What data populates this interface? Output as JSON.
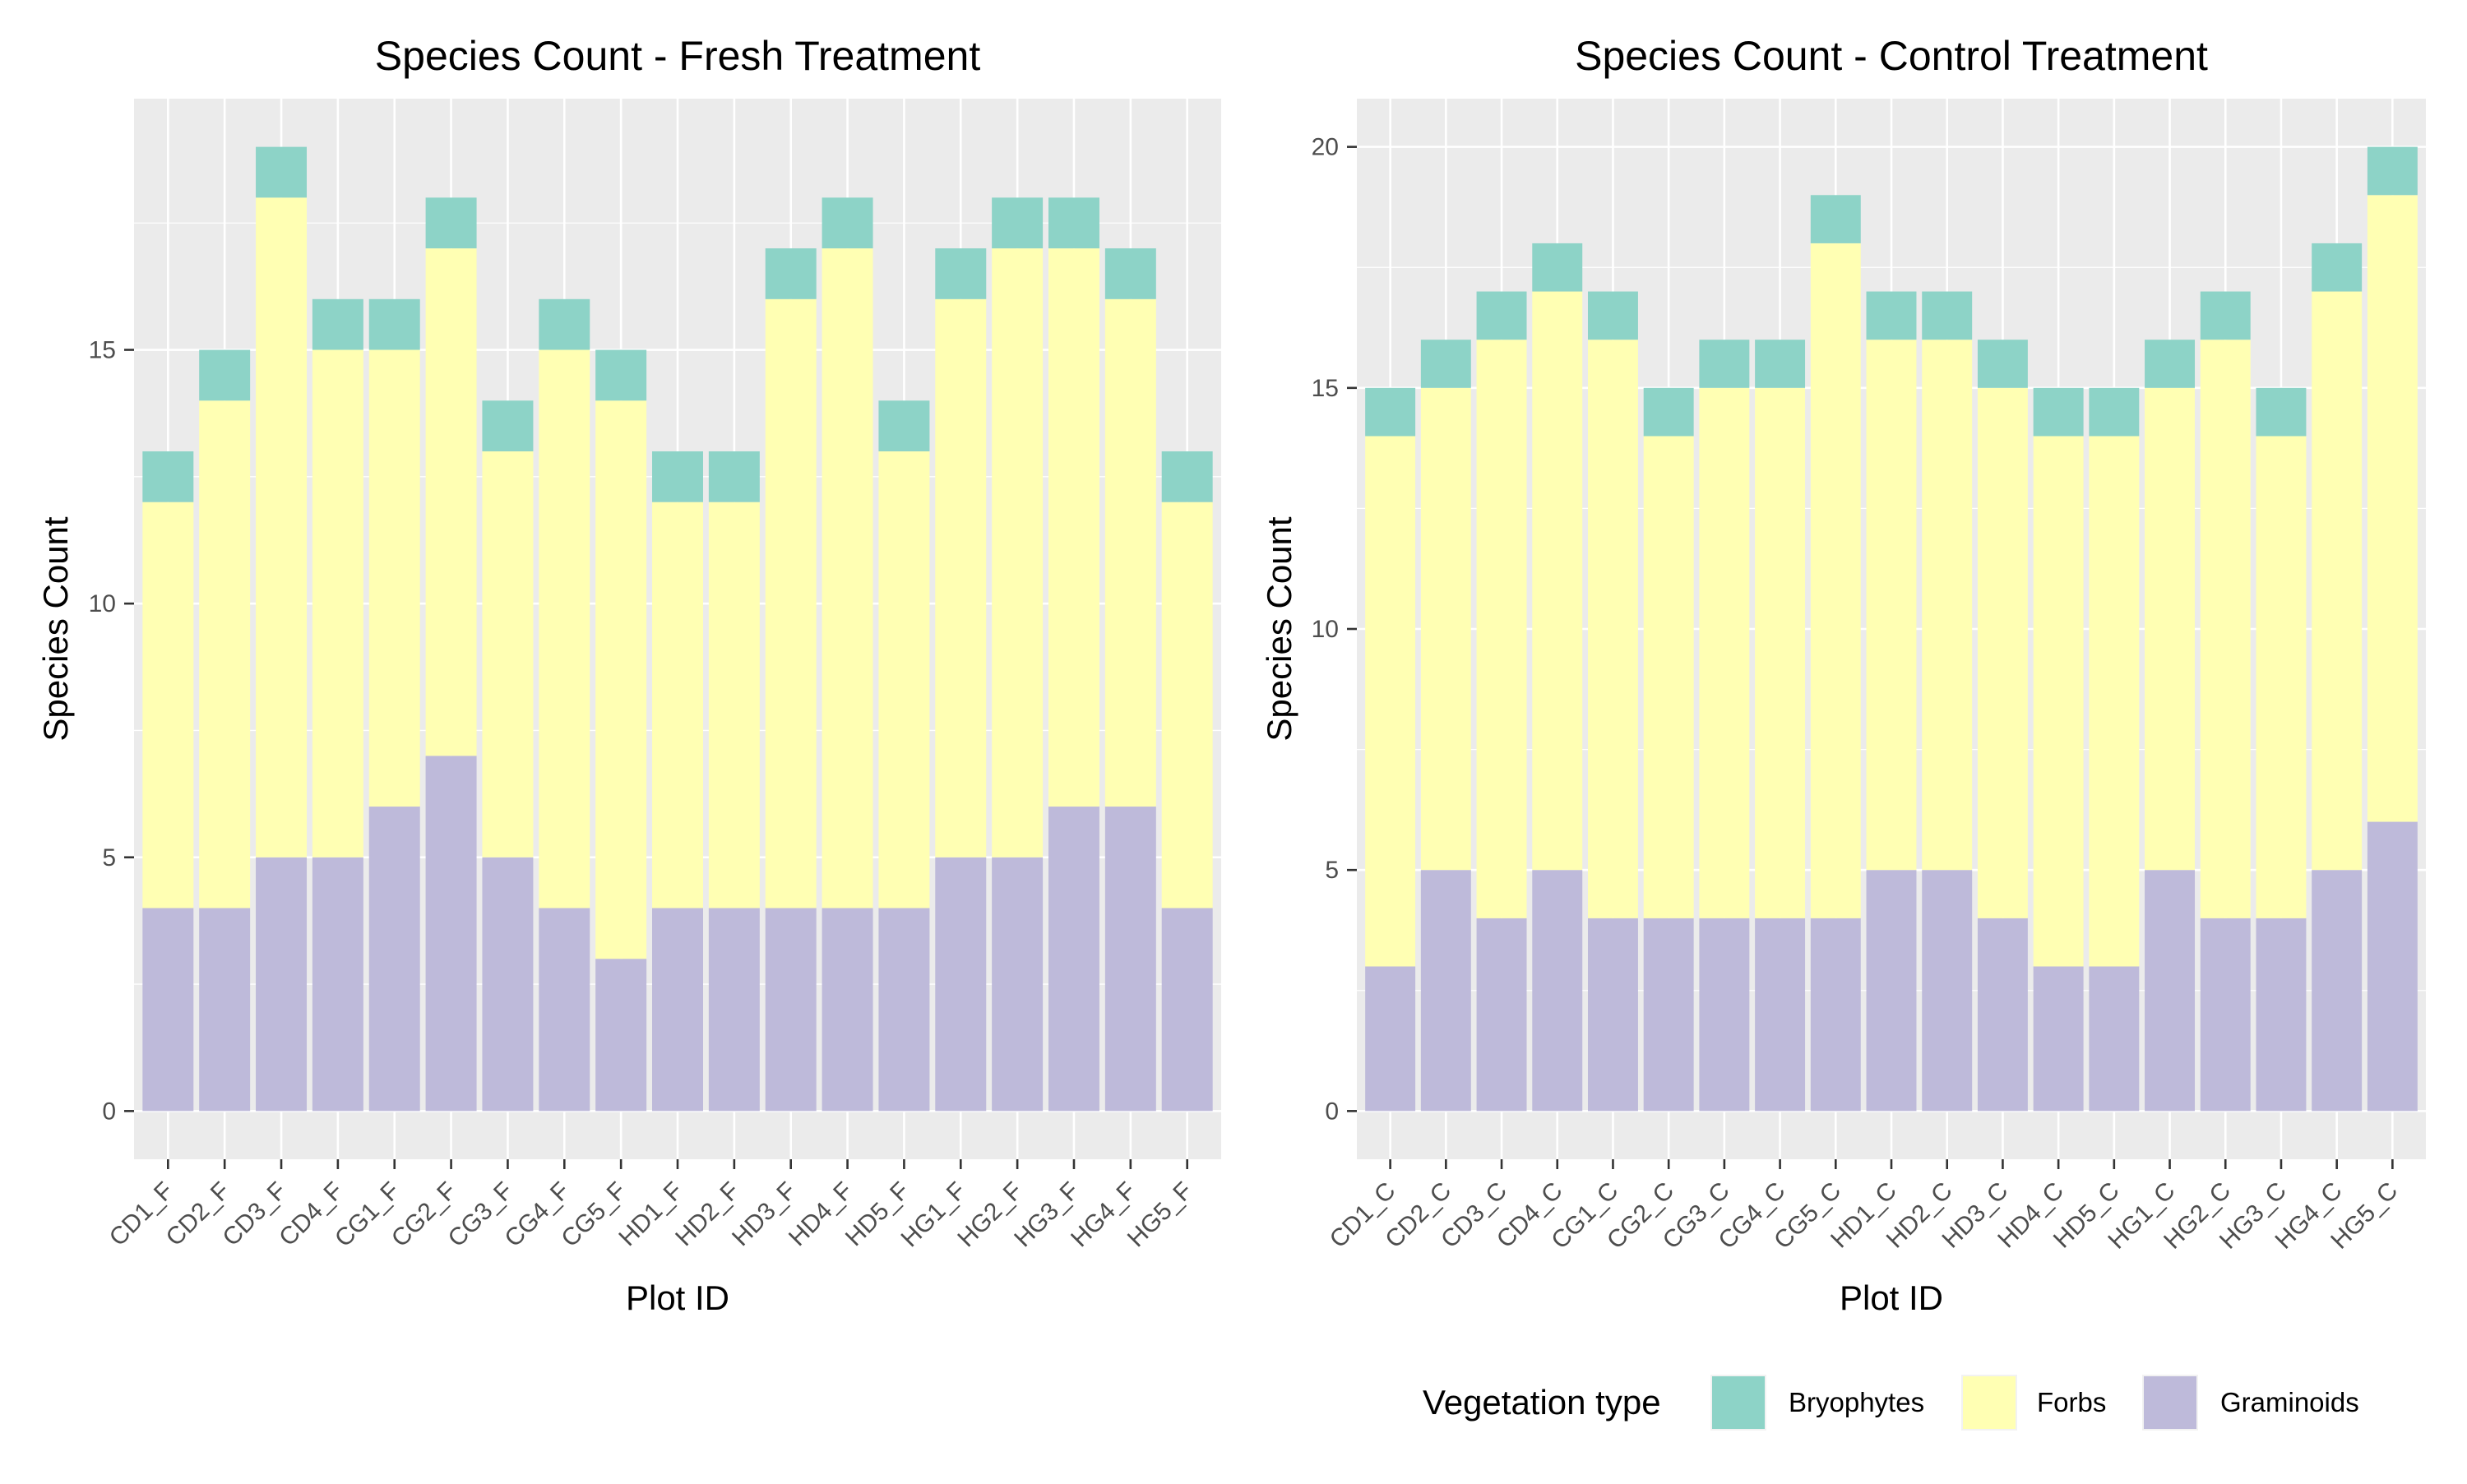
{
  "colors": {
    "Bryophytes": "#8DD3C7",
    "Forbs": "#FFFFB3",
    "Graminoids": "#BEBADA"
  },
  "legend": {
    "title": "Vegetation type",
    "entries": [
      "Bryophytes",
      "Forbs",
      "Graminoids"
    ],
    "position": "bottom-right"
  },
  "chart_data": [
    {
      "type": "bar",
      "stacked": true,
      "title": "Species Count - Fresh Treatment",
      "xlabel": "Plot ID",
      "ylabel": "Species Count",
      "ylim": [
        0,
        19
      ],
      "yticks": [
        0,
        5,
        10,
        15
      ],
      "grid": true,
      "categories": [
        "CD1_F",
        "CD2_F",
        "CD3_F",
        "CD4_F",
        "CG1_F",
        "CG2_F",
        "CG3_F",
        "CG4_F",
        "CG5_F",
        "HD1_F",
        "HD2_F",
        "HD3_F",
        "HD4_F",
        "HD5_F",
        "HG1_F",
        "HG2_F",
        "HG3_F",
        "HG4_F",
        "HG5_F"
      ],
      "series": [
        {
          "name": "Graminoids",
          "values": [
            4,
            4,
            5,
            5,
            6,
            7,
            5,
            4,
            3,
            4,
            4,
            4,
            4,
            4,
            5,
            5,
            6,
            6,
            4
          ]
        },
        {
          "name": "Forbs",
          "values": [
            8,
            10,
            13,
            10,
            9,
            10,
            8,
            11,
            11,
            8,
            8,
            12,
            13,
            9,
            11,
            12,
            11,
            10,
            8
          ]
        },
        {
          "name": "Bryophytes",
          "values": [
            1,
            1,
            1,
            1,
            1,
            1,
            1,
            1,
            1,
            1,
            1,
            1,
            1,
            1,
            1,
            1,
            1,
            1,
            1
          ]
        }
      ]
    },
    {
      "type": "bar",
      "stacked": true,
      "title": "Species Count - Control Treatment",
      "xlabel": "Plot ID",
      "ylabel": "Species Count",
      "ylim": [
        0,
        20
      ],
      "yticks": [
        0,
        5,
        10,
        15,
        20
      ],
      "grid": true,
      "categories": [
        "CD1_C",
        "CD2_C",
        "CD3_C",
        "CD4_C",
        "CG1_C",
        "CG2_C",
        "CG3_C",
        "CG4_C",
        "CG5_C",
        "HD1_C",
        "HD2_C",
        "HD3_C",
        "HD4_C",
        "HD5_C",
        "HG1_C",
        "HG2_C",
        "HG3_C",
        "HG4_C",
        "HG5_C"
      ],
      "series": [
        {
          "name": "Graminoids",
          "values": [
            3,
            5,
            4,
            5,
            4,
            4,
            4,
            4,
            4,
            5,
            5,
            4,
            3,
            3,
            5,
            4,
            4,
            5,
            6
          ]
        },
        {
          "name": "Forbs",
          "values": [
            11,
            10,
            12,
            12,
            12,
            10,
            11,
            11,
            14,
            11,
            11,
            11,
            11,
            11,
            10,
            12,
            10,
            12,
            13
          ]
        },
        {
          "name": "Bryophytes",
          "values": [
            1,
            1,
            1,
            1,
            1,
            1,
            1,
            1,
            1,
            1,
            1,
            1,
            1,
            1,
            1,
            1,
            1,
            1,
            1
          ]
        }
      ]
    }
  ]
}
